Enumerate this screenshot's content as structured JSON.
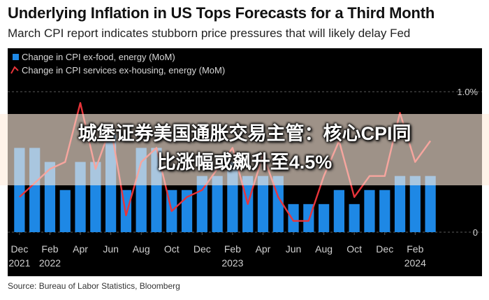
{
  "title": "Underlying Inflation in US Tops Forecasts for a Third Month",
  "subtitle": "March CPI report indicates stubborn price pressures that will likely delay Fed",
  "source": "Source: Bureau of Labor Statistics, Bloomberg",
  "overlay": {
    "line1": "城堡证券美国通胀交易主管：核心CPI同",
    "line2": "比涨幅或飙升至4.5%"
  },
  "colors": {
    "background": "#000000",
    "bar": "#1e88e5",
    "line": "#e8343a",
    "grid": "#5a5a5a",
    "axis_text": "#d0d0d0"
  },
  "chart_data": {
    "type": "bar",
    "legend_position": "top-left",
    "grid": true,
    "ylim": [
      0,
      1.2
    ],
    "y_ticks": [
      {
        "value": 1.0,
        "label": "1.0%"
      },
      {
        "value": 0,
        "label": "0"
      }
    ],
    "x_months": [
      "Dec 2021",
      "Jan 2022",
      "Feb 2022",
      "Mar 2022",
      "Apr 2022",
      "May 2022",
      "Jun 2022",
      "Jul 2022",
      "Aug 2022",
      "Sep 2022",
      "Oct 2022",
      "Nov 2022",
      "Dec 2022",
      "Jan 2023",
      "Feb 2023",
      "Mar 2023",
      "Apr 2023",
      "May 2023",
      "Jun 2023",
      "Jul 2023",
      "Aug 2023",
      "Sep 2023",
      "Oct 2023",
      "Nov 2023",
      "Dec 2023",
      "Jan 2024",
      "Feb 2024",
      "Mar 2024"
    ],
    "x_tick_labels": [
      {
        "index": 0,
        "month": "Dec",
        "year": "2021"
      },
      {
        "index": 2,
        "month": "Feb",
        "year": "2022"
      },
      {
        "index": 4,
        "month": "Apr",
        "year": ""
      },
      {
        "index": 6,
        "month": "Jun",
        "year": ""
      },
      {
        "index": 8,
        "month": "Aug",
        "year": ""
      },
      {
        "index": 10,
        "month": "Oct",
        "year": ""
      },
      {
        "index": 12,
        "month": "Dec",
        "year": ""
      },
      {
        "index": 14,
        "month": "Feb",
        "year": "2023"
      },
      {
        "index": 16,
        "month": "Apr",
        "year": ""
      },
      {
        "index": 18,
        "month": "Jun",
        "year": ""
      },
      {
        "index": 20,
        "month": "Aug",
        "year": ""
      },
      {
        "index": 22,
        "month": "Oct",
        "year": ""
      },
      {
        "index": 24,
        "month": "Dec",
        "year": ""
      },
      {
        "index": 26,
        "month": "Feb",
        "year": "2024"
      }
    ],
    "series": [
      {
        "name": "Change in CPI ex-food, energy (MoM)",
        "kind": "bar",
        "values": [
          0.6,
          0.6,
          0.5,
          0.3,
          0.5,
          0.5,
          0.7,
          0.3,
          0.6,
          0.6,
          0.3,
          0.3,
          0.4,
          0.4,
          0.5,
          0.4,
          0.4,
          0.4,
          0.2,
          0.2,
          0.2,
          0.3,
          0.2,
          0.3,
          0.3,
          0.4,
          0.4,
          0.4
        ]
      },
      {
        "name": "Change in CPI services ex-housing, energy (MoM)",
        "kind": "line",
        "values": [
          0.25,
          0.35,
          0.45,
          0.5,
          0.92,
          0.45,
          0.75,
          0.12,
          0.5,
          0.6,
          0.15,
          0.25,
          0.3,
          0.45,
          0.6,
          0.2,
          0.55,
          0.25,
          0.08,
          0.08,
          0.4,
          0.65,
          0.25,
          0.4,
          0.4,
          0.85,
          0.5,
          0.65
        ]
      }
    ]
  }
}
